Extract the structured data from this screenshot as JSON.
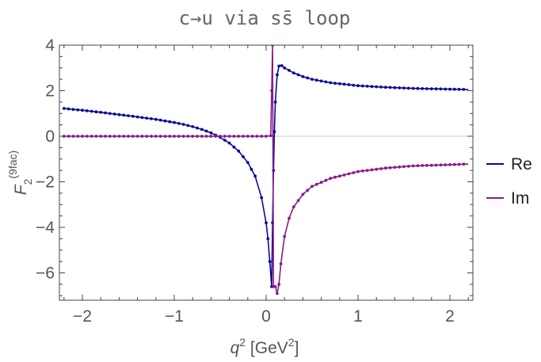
{
  "chart_data": {
    "type": "line",
    "title": "c→u via ss̄ loop",
    "xlabel": {
      "base": "q",
      "sup": "2",
      "unit_pre": " [GeV",
      "unit_sup": "2",
      "unit_post": "]"
    },
    "ylabel": {
      "base": "F",
      "sub": "2",
      "sup": "(9fac)"
    },
    "xlim": [
      -2.25,
      2.25
    ],
    "ylim": [
      -7.2,
      4.0
    ],
    "x_ticks": [
      -2,
      -1,
      0,
      1,
      2
    ],
    "x_tick_labels": [
      "−2",
      "−1",
      "0",
      "1",
      "2"
    ],
    "y_ticks": [
      4,
      2,
      0,
      -2,
      -4,
      -6
    ],
    "y_tick_labels": [
      "4",
      "2",
      "0",
      "−2",
      "−4",
      "−6"
    ],
    "grid": false,
    "legend_position": "right",
    "series": [
      {
        "name": "Re",
        "color": "#0a0a9a",
        "x": [
          -2.2,
          -2.0,
          -1.8,
          -1.6,
          -1.4,
          -1.2,
          -1.0,
          -0.9,
          -0.8,
          -0.7,
          -0.6,
          -0.5,
          -0.4,
          -0.3,
          -0.2,
          -0.12,
          -0.05,
          0.0,
          0.02,
          0.04,
          0.06,
          0.07,
          0.08,
          0.09,
          0.1,
          0.12,
          0.14,
          0.17,
          0.2,
          0.3,
          0.4,
          0.5,
          0.7,
          1.0,
          1.3,
          1.6,
          2.2
        ],
        "y": [
          1.22,
          1.14,
          1.05,
          0.95,
          0.85,
          0.74,
          0.6,
          0.52,
          0.42,
          0.3,
          0.15,
          -0.05,
          -0.3,
          -0.65,
          -1.15,
          -1.75,
          -2.7,
          -3.8,
          -4.5,
          -5.5,
          -6.6,
          -3.8,
          -1.5,
          0.2,
          1.5,
          2.7,
          3.08,
          3.1,
          3.0,
          2.78,
          2.62,
          2.5,
          2.35,
          2.22,
          2.15,
          2.1,
          2.05
        ]
      },
      {
        "name": "Im",
        "color": "#8b1a8b",
        "x": [
          -2.2,
          -1.5,
          -1.0,
          -0.5,
          0.0,
          0.05,
          0.06,
          0.07,
          0.08,
          0.1,
          0.12,
          0.14,
          0.16,
          0.2,
          0.25,
          0.3,
          0.4,
          0.5,
          0.7,
          1.0,
          1.3,
          1.6,
          2.0,
          2.2
        ],
        "y": [
          0,
          0,
          0,
          0,
          0,
          0.02,
          2.0,
          4.0,
          -6.6,
          -6.6,
          -6.9,
          -6.5,
          -5.6,
          -4.4,
          -3.6,
          -3.1,
          -2.55,
          -2.2,
          -1.85,
          -1.55,
          -1.4,
          -1.3,
          -1.25,
          -1.22
        ]
      }
    ]
  }
}
